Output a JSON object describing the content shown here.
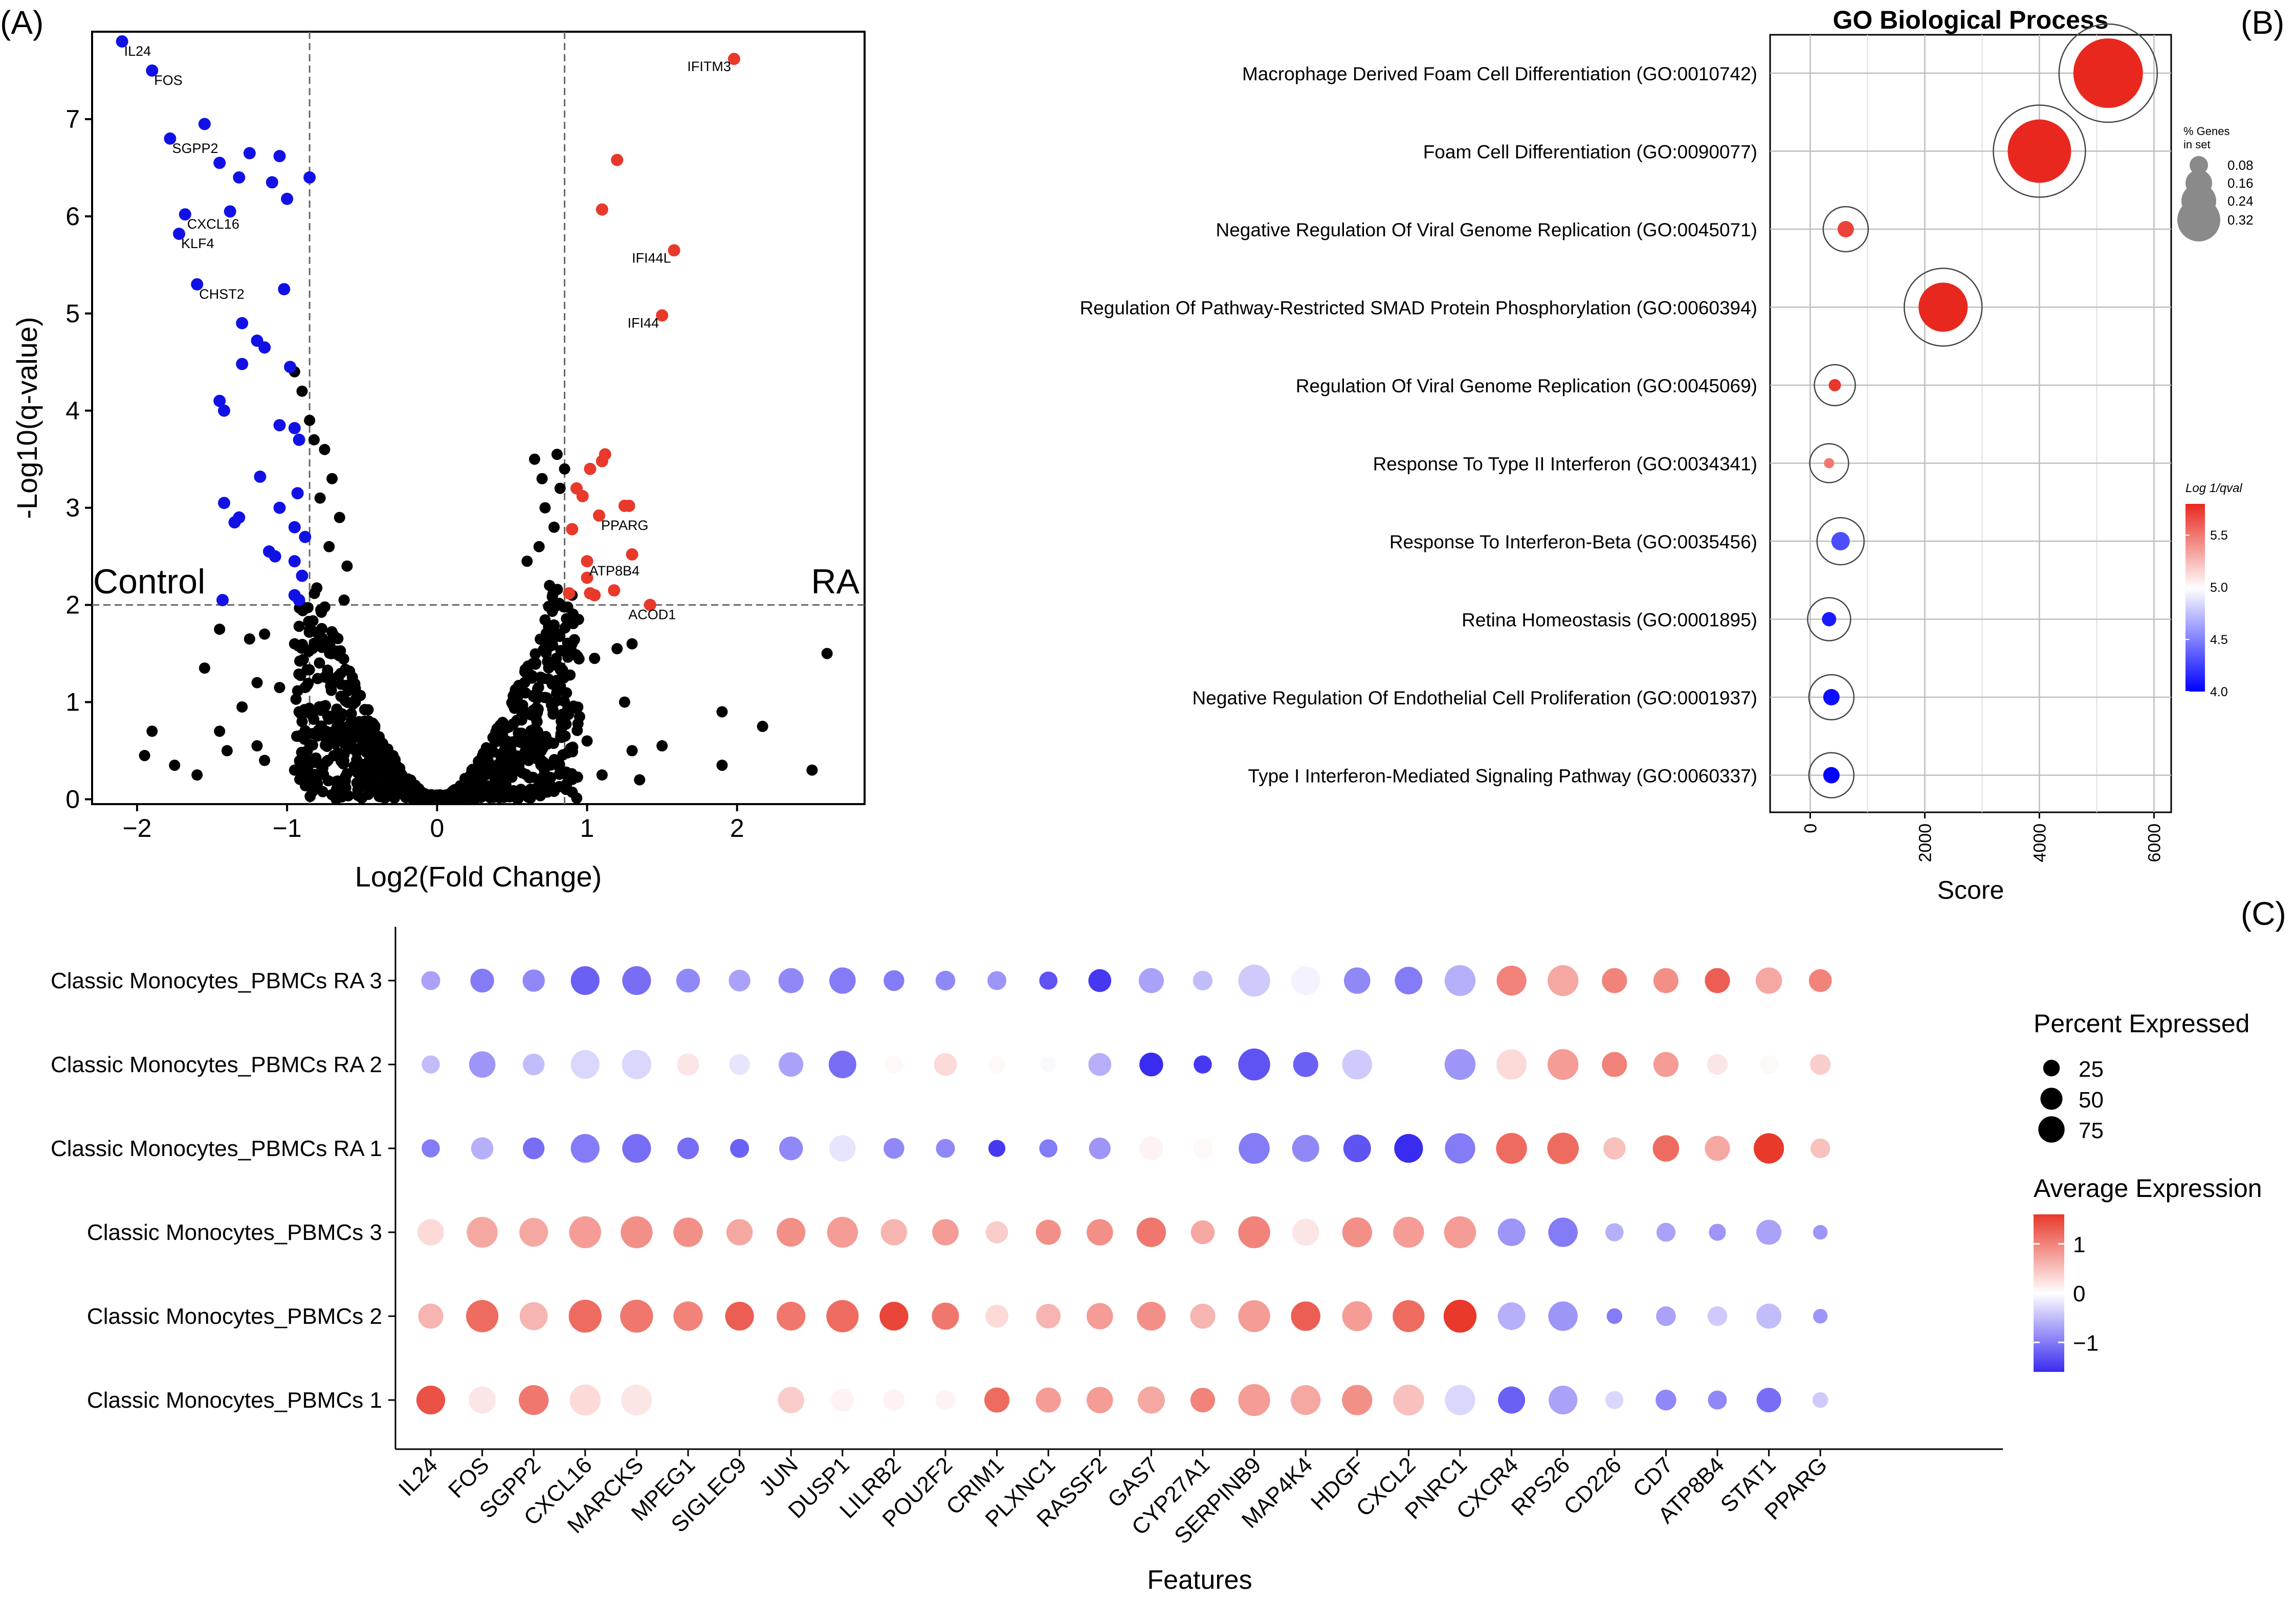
{
  "panel_labels": {
    "a": "(A)",
    "b": "(B)",
    "c": "(C)"
  },
  "colors": {
    "up": "#e8392b",
    "down": "#1111e6",
    "ns": "#000000",
    "grid": "#bdbdbd",
    "refline": "#666666"
  },
  "chart_data": [
    {
      "type": "scatter",
      "panel": "A",
      "title": "",
      "xlabel": "Log2(Fold Change)",
      "ylabel": "-Log10(q-value)",
      "xlim": [
        -2.3,
        2.85
      ],
      "ylim": [
        -0.05,
        7.9
      ],
      "xticks": [
        "−2",
        "−1",
        "0",
        "1",
        "2"
      ],
      "xtick_values": [
        -2,
        -1,
        0,
        1,
        2
      ],
      "yticks": [
        "0",
        "1",
        "2",
        "3",
        "4",
        "5",
        "6",
        "7"
      ],
      "ytick_values": [
        0,
        1,
        2,
        3,
        4,
        5,
        6,
        7
      ],
      "threshold_fc": [
        -0.85,
        0.85
      ],
      "threshold_q": 2,
      "group_labels": {
        "left": "Control",
        "right": "RA"
      },
      "series": [
        {
          "name": "down",
          "points": [
            {
              "x": -2.1,
              "y": 7.8,
              "label": "IL24"
            },
            {
              "x": -1.9,
              "y": 7.5,
              "label": "FOS"
            },
            {
              "x": -1.55,
              "y": 6.95
            },
            {
              "x": -1.78,
              "y": 6.8,
              "label": "SGPP2"
            },
            {
              "x": -1.25,
              "y": 6.65
            },
            {
              "x": -1.05,
              "y": 6.62
            },
            {
              "x": -1.45,
              "y": 6.55
            },
            {
              "x": -1.32,
              "y": 6.4
            },
            {
              "x": -0.85,
              "y": 6.4
            },
            {
              "x": -1.1,
              "y": 6.35
            },
            {
              "x": -1.0,
              "y": 6.18
            },
            {
              "x": -1.68,
              "y": 6.02,
              "label": "CXCL16"
            },
            {
              "x": -1.38,
              "y": 6.05
            },
            {
              "x": -1.72,
              "y": 5.82,
              "label": "KLF4"
            },
            {
              "x": -1.6,
              "y": 5.3,
              "label": "CHST2"
            },
            {
              "x": -1.02,
              "y": 5.25
            },
            {
              "x": -1.3,
              "y": 4.9
            },
            {
              "x": -1.2,
              "y": 4.72
            },
            {
              "x": -1.15,
              "y": 4.65
            },
            {
              "x": -1.3,
              "y": 4.48
            },
            {
              "x": -0.98,
              "y": 4.45
            },
            {
              "x": -1.45,
              "y": 4.1
            },
            {
              "x": -1.42,
              "y": 4.0
            },
            {
              "x": -1.05,
              "y": 3.85
            },
            {
              "x": -0.95,
              "y": 3.82
            },
            {
              "x": -0.92,
              "y": 3.7
            },
            {
              "x": -1.18,
              "y": 3.32
            },
            {
              "x": -0.93,
              "y": 3.15
            },
            {
              "x": -1.42,
              "y": 3.05
            },
            {
              "x": -1.32,
              "y": 2.9
            },
            {
              "x": -1.35,
              "y": 2.85
            },
            {
              "x": -1.05,
              "y": 3.0
            },
            {
              "x": -0.95,
              "y": 2.8
            },
            {
              "x": -1.12,
              "y": 2.55
            },
            {
              "x": -1.08,
              "y": 2.5
            },
            {
              "x": -0.88,
              "y": 2.7
            },
            {
              "x": -0.95,
              "y": 2.45
            },
            {
              "x": -0.9,
              "y": 2.3
            },
            {
              "x": -1.43,
              "y": 2.05
            },
            {
              "x": -0.95,
              "y": 2.1
            },
            {
              "x": -0.92,
              "y": 2.05
            }
          ]
        },
        {
          "name": "up",
          "points": [
            {
              "x": 1.98,
              "y": 7.62,
              "label": "IFITM3"
            },
            {
              "x": 1.2,
              "y": 6.58
            },
            {
              "x": 1.1,
              "y": 6.07
            },
            {
              "x": 1.58,
              "y": 5.65,
              "label": "IFI44L"
            },
            {
              "x": 1.5,
              "y": 4.98,
              "label": "IFI44"
            },
            {
              "x": 1.12,
              "y": 3.55
            },
            {
              "x": 1.1,
              "y": 3.48
            },
            {
              "x": 1.02,
              "y": 3.4
            },
            {
              "x": 0.93,
              "y": 3.2
            },
            {
              "x": 0.97,
              "y": 3.12
            },
            {
              "x": 1.28,
              "y": 3.02
            },
            {
              "x": 1.25,
              "y": 3.02
            },
            {
              "x": 1.08,
              "y": 2.92,
              "label": "PPARG"
            },
            {
              "x": 0.9,
              "y": 2.78
            },
            {
              "x": 1.3,
              "y": 2.52
            },
            {
              "x": 1.0,
              "y": 2.45,
              "label": "ATP8B4"
            },
            {
              "x": 1.0,
              "y": 2.28
            },
            {
              "x": 1.18,
              "y": 2.15
            },
            {
              "x": 1.02,
              "y": 2.12
            },
            {
              "x": 1.05,
              "y": 2.1
            },
            {
              "x": 0.88,
              "y": 2.12
            },
            {
              "x": 1.42,
              "y": 2.0,
              "label": "ACOD1"
            }
          ]
        }
      ]
    },
    {
      "type": "bubble",
      "panel": "B",
      "title": "GO Biological Process",
      "xlabel": "Score",
      "ylabel": "",
      "xlim": [
        -700,
        6300
      ],
      "xticks": [
        "0",
        "2000",
        "4000",
        "6000"
      ],
      "xtick_values": [
        0,
        2000,
        4000,
        6000
      ],
      "size_legend": {
        "title": "% Genes in set",
        "values": [
          "0.08",
          "0.16",
          "0.24",
          "0.32"
        ],
        "numeric": [
          0.08,
          0.16,
          0.24,
          0.32
        ]
      },
      "color_legend": {
        "title": "Log 1/qval",
        "range": [
          4.0,
          5.8
        ],
        "ticks": [
          "4.0",
          "4.5",
          "5.0",
          "5.5"
        ],
        "tick_values": [
          4.0,
          4.5,
          5.0,
          5.5
        ]
      },
      "terms": [
        {
          "term": "Macrophage Derived Foam Cell Differentiation (GO:0010742)",
          "score": 5200,
          "pct": 0.32,
          "log_inv_q": 5.8
        },
        {
          "term": "Foam Cell Differentiation (GO:0090077)",
          "score": 4000,
          "pct": 0.29,
          "log_inv_q": 5.8
        },
        {
          "term": "Negative Regulation Of Viral Genome Replication (GO:0045071)",
          "score": 620,
          "pct": 0.06,
          "log_inv_q": 5.7
        },
        {
          "term": "Regulation Of Pathway-Restricted SMAD Protein Phosphorylation (GO:0060394)",
          "score": 2320,
          "pct": 0.22,
          "log_inv_q": 5.8
        },
        {
          "term": "Regulation Of Viral Genome Replication (GO:0045069)",
          "score": 430,
          "pct": 0.04,
          "log_inv_q": 5.75
        },
        {
          "term": "Response To Type II Interferon (GO:0034341)",
          "score": 330,
          "pct": 0.03,
          "log_inv_q": 5.5
        },
        {
          "term": "Response To Interferon-Beta (GO:0035456)",
          "score": 530,
          "pct": 0.07,
          "log_inv_q": 4.3
        },
        {
          "term": "Retina Homeostasis (GO:0001895)",
          "score": 330,
          "pct": 0.05,
          "log_inv_q": 4.1
        },
        {
          "term": "Negative Regulation Of Endothelial Cell Proliferation (GO:0001937)",
          "score": 370,
          "pct": 0.06,
          "log_inv_q": 4.05
        },
        {
          "term": "Type I Interferon-Mediated Signaling Pathway (GO:0060337)",
          "score": 370,
          "pct": 0.06,
          "log_inv_q": 4.0
        }
      ]
    },
    {
      "type": "dotplot",
      "panel": "C",
      "title": "",
      "xlabel": "Features",
      "ylabel": "",
      "features": [
        "IL24",
        "FOS",
        "SGPP2",
        "CXCL16",
        "MARCKS",
        "MPEG1",
        "SIGLEC9",
        "JUN",
        "DUSP1",
        "LILRB2",
        "POU2F2",
        "CRIM1",
        "PLXNC1",
        "RASSF2",
        "GAS7",
        "CYP27A1",
        "SERPINB9",
        "MAP4K4",
        "HDGF",
        "CXCL2",
        "PNRC1",
        "CXCR4",
        "RPS26",
        "CD226",
        "CD7",
        "ATP8B4",
        "STAT1",
        "PPARG"
      ],
      "groups": [
        "Classic Monocytes_PBMCs RA 3",
        "Classic Monocytes_PBMCs RA 2",
        "Classic Monocytes_PBMCs RA 1",
        "Classic Monocytes_PBMCs 3",
        "Classic Monocytes_PBMCs 2",
        "Classic Monocytes_PBMCs 1"
      ],
      "size_legend": {
        "title": "Percent Expressed",
        "values": [
          "25",
          "50",
          "75"
        ],
        "numeric": [
          25,
          50,
          75
        ]
      },
      "color_legend": {
        "title": "Average Expression",
        "range": [
          -1.6,
          1.6
        ],
        "ticks": [
          "1",
          "0",
          "−1"
        ],
        "tick_values": [
          1,
          0,
          -1
        ]
      },
      "rows": [
        {
          "group": "Classic Monocytes_PBMCs RA 3",
          "pct": [
            20,
            35,
            30,
            55,
            55,
            35,
            28,
            40,
            45,
            25,
            22,
            20,
            18,
            32,
            40,
            22,
            70,
            55,
            45,
            50,
            65,
            60,
            65,
            40,
            40,
            40,
            45,
            32
          ],
          "avg": [
            -0.7,
            -1.0,
            -0.9,
            -1.2,
            -1.1,
            -0.9,
            -0.7,
            -0.9,
            -1.0,
            -1.0,
            -0.9,
            -0.8,
            -1.3,
            -1.5,
            -0.7,
            -0.5,
            -0.4,
            -0.1,
            -0.9,
            -1.0,
            -0.6,
            1.0,
            0.7,
            1.0,
            0.9,
            1.3,
            0.7,
            1.0
          ]
        },
        {
          "group": "Classic Monocytes_PBMCs RA 2",
          "pct": [
            18,
            45,
            28,
            55,
            58,
            30,
            25,
            38,
            50,
            18,
            32,
            15,
            12,
            32,
            35,
            18,
            70,
            40,
            60,
            0,
            65,
            62,
            65,
            40,
            40,
            25,
            20,
            25
          ],
          "avg": [
            -0.5,
            -0.8,
            -0.5,
            -0.3,
            -0.3,
            0.2,
            -0.2,
            -0.7,
            -1.1,
            0.05,
            0.3,
            0.05,
            -0.05,
            -0.6,
            -1.6,
            -1.5,
            -1.3,
            -1.2,
            -0.4,
            0,
            -0.8,
            0.3,
            0.8,
            1.0,
            0.8,
            0.2,
            0.05,
            0.4
          ]
        },
        {
          "group": "Classic Monocytes_PBMCs RA 1",
          "pct": [
            18,
            30,
            28,
            55,
            55,
            28,
            20,
            35,
            45,
            25,
            20,
            15,
            18,
            28,
            35,
            22,
            65,
            48,
            50,
            55,
            62,
            65,
            68,
            30,
            45,
            40,
            62,
            22
          ],
          "avg": [
            -1.0,
            -0.6,
            -1.1,
            -1.0,
            -1.1,
            -1.1,
            -1.2,
            -0.9,
            -0.2,
            -0.9,
            -0.9,
            -1.5,
            -1.0,
            -0.8,
            0.1,
            0.05,
            -1.0,
            -0.9,
            -1.3,
            -1.7,
            -1.0,
            1.2,
            1.2,
            0.5,
            1.2,
            0.7,
            1.6,
            0.5
          ]
        },
        {
          "group": "Classic Monocytes_PBMCs 3",
          "pct": [
            45,
            65,
            55,
            70,
            70,
            58,
            45,
            55,
            65,
            45,
            45,
            30,
            40,
            45,
            58,
            35,
            70,
            48,
            60,
            65,
            70,
            50,
            58,
            18,
            20,
            15,
            40,
            10
          ],
          "avg": [
            0.3,
            0.7,
            0.7,
            0.8,
            0.9,
            0.9,
            0.7,
            0.9,
            0.8,
            0.6,
            0.8,
            0.4,
            0.9,
            0.9,
            1.1,
            0.7,
            1.0,
            0.2,
            0.9,
            0.8,
            0.8,
            -0.8,
            -1.0,
            -0.6,
            -0.7,
            -0.8,
            -0.7,
            -0.8
          ]
        },
        {
          "group": "Classic Monocytes_PBMCs 2",
          "pct": [
            40,
            72,
            52,
            75,
            75,
            58,
            55,
            55,
            72,
            55,
            48,
            32,
            38,
            45,
            55,
            40,
            70,
            58,
            60,
            70,
            75,
            50,
            58,
            12,
            22,
            22,
            40,
            10
          ],
          "avg": [
            0.6,
            1.2,
            0.6,
            1.2,
            1.1,
            1.0,
            1.3,
            1.1,
            1.2,
            1.5,
            1.1,
            0.3,
            0.6,
            0.8,
            0.9,
            0.6,
            0.8,
            1.3,
            0.8,
            1.2,
            1.6,
            -0.6,
            -0.8,
            -1.0,
            -0.7,
            -0.4,
            -0.5,
            -0.8
          ]
        },
        {
          "group": "Classic Monocytes_PBMCs 1",
          "pct": [
            55,
            48,
            60,
            65,
            65,
            0,
            0,
            45,
            32,
            28,
            22,
            40,
            40,
            45,
            48,
            38,
            70,
            60,
            62,
            65,
            62,
            48,
            55,
            18,
            25,
            20,
            38,
            12
          ],
          "avg": [
            1.4,
            0.2,
            1.1,
            0.3,
            0.2,
            0,
            0,
            0.4,
            0.1,
            0.1,
            0.1,
            1.2,
            0.8,
            0.8,
            0.7,
            1.0,
            0.8,
            0.7,
            0.9,
            0.5,
            -0.3,
            -1.2,
            -0.7,
            -0.3,
            -0.9,
            -0.9,
            -1.1,
            -0.4
          ]
        }
      ]
    }
  ]
}
